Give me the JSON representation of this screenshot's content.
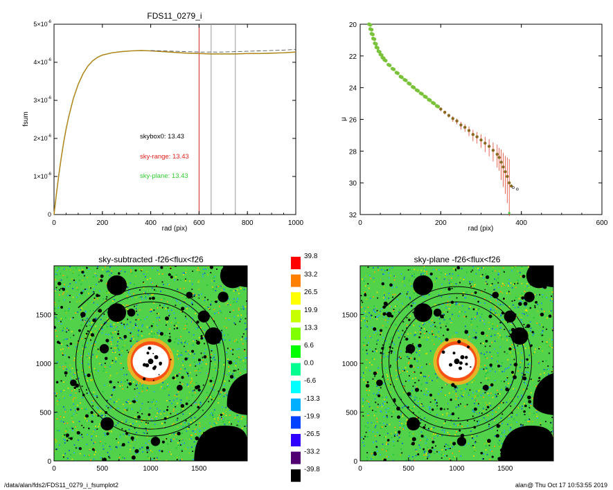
{
  "footer": {
    "path": "/data/alan/fds2/FDS11_0279_i_fsumplot2",
    "user_time": "alan@  Thu Oct 17 10:53:55 2019"
  },
  "colors": {
    "curve_orange": "#c8741a",
    "curve_green": "#7ac23a",
    "skybox": "#000000",
    "skyrange": "#e0201a",
    "skyplane": "#2ecc2e",
    "vline_red": "#d02020",
    "vline_grey": "#999999"
  },
  "chart_data": [
    {
      "type": "line",
      "title": "FDS11_0279_i",
      "xlabel": "rad (pix)",
      "ylabel": "fsum",
      "xlim": [
        0,
        1000
      ],
      "ylim": [
        0,
        5e-06
      ],
      "xticks": [
        "0",
        "200",
        "400",
        "600",
        "800",
        "1000"
      ],
      "yticks": [
        {
          "value": 0,
          "mant": "0",
          "exp": ""
        },
        {
          "value": 1e-06,
          "mant": "1×10",
          "exp": "-6"
        },
        {
          "value": 2e-06,
          "mant": "2×10",
          "exp": "-6"
        },
        {
          "value": 3e-06,
          "mant": "3×10",
          "exp": "-6"
        },
        {
          "value": 4e-06,
          "mant": "4×10",
          "exp": "-6"
        },
        {
          "value": 5e-06,
          "mant": "5×10",
          "exp": "-6"
        }
      ],
      "series": [
        {
          "style": "solid",
          "x": [
            0,
            10,
            20,
            30,
            40,
            50,
            60,
            80,
            100,
            120,
            140,
            160,
            180,
            200,
            240,
            280,
            320,
            360,
            400,
            450,
            500,
            550,
            600,
            650,
            700,
            750,
            800,
            850,
            900,
            950,
            1000
          ],
          "y": [
            0,
            0.55,
            1.05,
            1.5,
            1.9,
            2.25,
            2.55,
            3.05,
            3.42,
            3.7,
            3.9,
            4.04,
            4.13,
            4.19,
            4.25,
            4.28,
            4.3,
            4.31,
            4.3,
            4.28,
            4.26,
            4.24,
            4.23,
            4.22,
            4.22,
            4.22,
            4.23,
            4.23,
            4.24,
            4.25,
            4.27
          ]
        },
        {
          "style": "dashed",
          "x": [
            400,
            450,
            500,
            550,
            600,
            650,
            700,
            750,
            800,
            850,
            900,
            950,
            1000
          ],
          "y": [
            4.31,
            4.3,
            4.29,
            4.28,
            4.27,
            4.27,
            4.27,
            4.28,
            4.29,
            4.3,
            4.31,
            4.32,
            4.34
          ]
        }
      ],
      "vlines": [
        {
          "x": 600,
          "color": "red"
        },
        {
          "x": 650,
          "color": "grey"
        },
        {
          "x": 750,
          "color": "grey"
        }
      ],
      "annotations": [
        {
          "text": "skybox0: 13.43",
          "color": "skybox"
        },
        {
          "text": "sky-range: 13.43",
          "color": "skyrange"
        },
        {
          "text": "sky-plane: 13.43",
          "color": "skyplane"
        }
      ]
    },
    {
      "type": "scatter",
      "title": "",
      "xlabel": "rad (pix)",
      "ylabel": "μ",
      "xlim": [
        0,
        600
      ],
      "ylim": [
        32,
        20
      ],
      "xticks": [
        "0",
        "200",
        "400",
        "600"
      ],
      "yticks": [
        "20",
        "22",
        "24",
        "26",
        "28",
        "30",
        "32"
      ],
      "x": [
        22,
        25,
        28,
        32,
        36,
        40,
        45,
        50,
        55,
        60,
        70,
        80,
        90,
        100,
        110,
        120,
        130,
        140,
        150,
        160,
        170,
        180,
        190,
        200,
        210,
        220,
        230,
        240,
        250,
        260,
        270,
        280,
        290,
        300,
        310,
        320,
        330,
        340,
        345,
        350,
        355,
        360,
        365,
        370,
        375,
        380,
        390
      ],
      "y": [
        20,
        20.3,
        20.6,
        20.9,
        21.2,
        21.45,
        21.7,
        21.9,
        22.1,
        22.25,
        22.55,
        22.8,
        23.05,
        23.3,
        23.5,
        23.72,
        23.95,
        24.15,
        24.35,
        24.55,
        24.75,
        24.95,
        25.15,
        25.35,
        25.55,
        25.75,
        25.95,
        26.1,
        26.35,
        26.5,
        26.7,
        26.95,
        27.1,
        27.3,
        27.5,
        27.7,
        27.95,
        28.2,
        28.4,
        28.7,
        29.0,
        29.3,
        29.6,
        30.0,
        30.2,
        30.3,
        30.4
      ],
      "err": [
        0,
        0,
        0,
        0,
        0,
        0,
        0,
        0,
        0,
        0,
        0,
        0,
        0,
        0,
        0,
        0,
        0,
        0,
        0,
        0,
        0,
        0,
        0,
        0.1,
        0.1,
        0.1,
        0.15,
        0.15,
        0.2,
        0.2,
        0.25,
        0.3,
        0.3,
        0.35,
        0.4,
        0.45,
        0.5,
        0.6,
        0.6,
        0.8,
        0.9,
        1.0,
        1.2,
        1.5,
        0,
        0,
        0
      ]
    },
    {
      "type": "heatmap",
      "title": "sky-subtracted -f26<flux<f26",
      "xlim": [
        0,
        2000
      ],
      "ylim": [
        0,
        2000
      ],
      "xticks": [
        "0",
        "500",
        "1000",
        "1500"
      ],
      "yticks": [
        "0",
        "500",
        "1000",
        "1500"
      ]
    },
    {
      "type": "heatmap",
      "title": "sky-plane -f26<flux<f26",
      "xlim": [
        0,
        2000
      ],
      "ylim": [
        0,
        2000
      ],
      "xticks": [
        "0",
        "500",
        "1000",
        "1500"
      ],
      "yticks": [
        "0",
        "500",
        "1000",
        "1500"
      ]
    },
    {
      "type": "colorbar",
      "labels": [
        "39.8",
        "33.2",
        "26.5",
        "19.9",
        "13.3",
        "6.6",
        "0.0",
        "-6.6",
        "-13.3",
        "-19.9",
        "-26.5",
        "-33.2",
        "-39.8"
      ],
      "colors": [
        "#ff0000",
        "#ff8000",
        "#ffff00",
        "#c8ff00",
        "#80ff00",
        "#00ff00",
        "#00ff90",
        "#00ffff",
        "#00b0ff",
        "#0040ff",
        "#3000ff",
        "#500070",
        "#000000"
      ]
    }
  ]
}
